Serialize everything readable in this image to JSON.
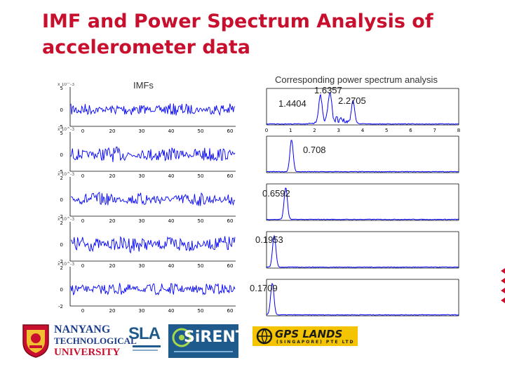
{
  "slide": {
    "title_line1": "IMF and Power Spectrum Analysis of",
    "title_line2": "accelerometer data",
    "imfs_label": "IMFs",
    "psd_label": "Corresponding power spectrum analysis"
  },
  "imf_panel": {
    "x_ticks": [
      "0",
      "20",
      "30",
      "40",
      "50",
      "60"
    ],
    "rows": [
      {
        "y_top": "5",
        "y_mid": "0",
        "y_bot": "-5",
        "exp": "x 10^-3"
      },
      {
        "y_top": "5",
        "y_mid": "0",
        "y_bot": "-5",
        "exp": "x 10^-3"
      },
      {
        "y_top": "2",
        "y_mid": "0",
        "y_bot": "-2",
        "exp": "x 10^-3"
      },
      {
        "y_top": "2",
        "y_mid": "0",
        "y_bot": "-2",
        "exp": "x 10^-3"
      },
      {
        "y_top": "2",
        "y_mid": "0",
        "y_bot": "-2",
        "exp": "x 10^-3"
      }
    ]
  },
  "psd_panel": {
    "x_ticks": [
      "0",
      "1",
      "2",
      "3",
      "4",
      "5",
      "6",
      "7",
      "8"
    ],
    "peak_labels": [
      {
        "text": "1.6357"
      },
      {
        "text": "2.2705"
      },
      {
        "text": "1.4404"
      },
      {
        "text": "0.708"
      },
      {
        "text": "0.6592"
      },
      {
        "text": "0.1953"
      },
      {
        "text": "0.1709"
      }
    ]
  },
  "logos": {
    "ntu_line1": "NANYANG",
    "ntu_line2": "TECHNOLOGICAL",
    "ntu_line3": "UNIVERSITY",
    "sla_text": "SLA",
    "sirent_text": "SiRENT",
    "gps_text": "GPS LANDS",
    "gps_sub": "(SINGAPORE) PTE LTD"
  },
  "colors": {
    "title": "#c8102e",
    "signal": "#0000ff",
    "axis": "#000000",
    "sirent_bg": "#1e5a8c",
    "gps_bg": "#f5c400"
  }
}
